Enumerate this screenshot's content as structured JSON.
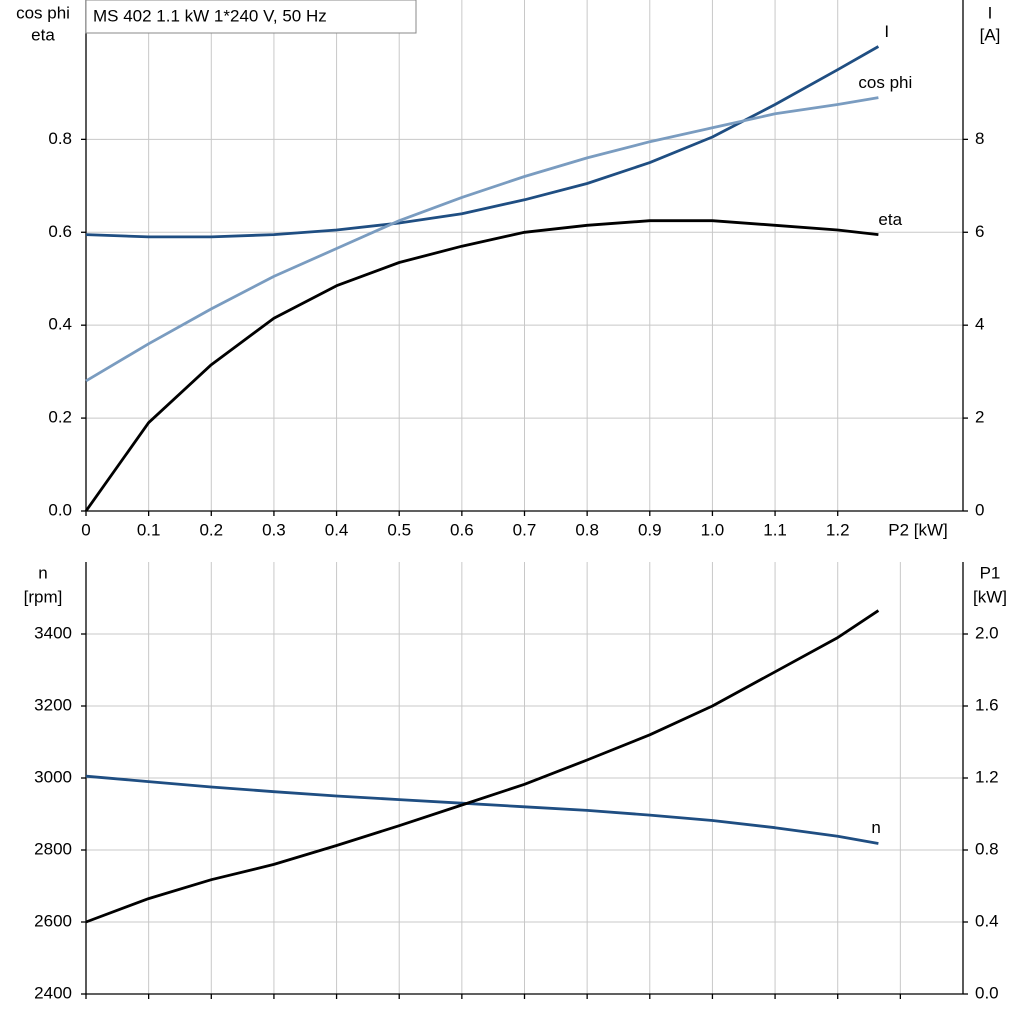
{
  "chart_data": [
    {
      "type": "line",
      "title": "MS 402   1.1 kW   1*240 V, 50 Hz",
      "x": [
        0,
        0.1,
        0.2,
        0.3,
        0.4,
        0.5,
        0.6,
        0.7,
        0.8,
        0.9,
        1.0,
        1.1,
        1.2,
        1.265
      ],
      "xlim": [
        0,
        1.4
      ],
      "xticks": [
        0,
        0.1,
        0.2,
        0.3,
        0.4,
        0.5,
        0.6,
        0.7,
        0.8,
        0.9,
        {
          "value": 1,
          "label": "1.0"
        },
        1.1,
        1.2
      ],
      "xlabel": "P2 [kW]",
      "ylim": [
        0,
        1.1
      ],
      "yticks": [
        {
          "value": 0,
          "label": "0.0"
        },
        0.2,
        0.4,
        0.6,
        0.8
      ],
      "ylabel": [
        "cos phi",
        "eta"
      ],
      "y2lim": [
        0,
        11
      ],
      "y2ticks": [
        0,
        2,
        4,
        6,
        8
      ],
      "y2label": [
        "I",
        "[A]"
      ],
      "grid": true,
      "series": [
        {
          "name": "I",
          "color": "#1f4e82",
          "axis": "y2",
          "values": [
            5.95,
            5.9,
            5.9,
            5.95,
            6.05,
            6.2,
            6.4,
            6.7,
            7.05,
            7.5,
            8.05,
            8.75,
            9.5,
            10.0
          ]
        },
        {
          "name": "cos phi",
          "color": "#7a9cc0",
          "values": [
            0.28,
            0.36,
            0.435,
            0.505,
            0.565,
            0.625,
            0.675,
            0.72,
            0.76,
            0.795,
            0.825,
            0.855,
            0.875,
            0.89
          ]
        },
        {
          "name": "eta",
          "color": "#000000",
          "values": [
            0,
            0.19,
            0.315,
            0.415,
            0.485,
            0.535,
            0.57,
            0.6,
            0.615,
            0.625,
            0.625,
            0.615,
            0.605,
            0.595
          ]
        }
      ]
    },
    {
      "type": "line",
      "x": [
        0,
        0.1,
        0.2,
        0.3,
        0.4,
        0.5,
        0.6,
        0.7,
        0.8,
        0.9,
        1.0,
        1.1,
        1.2,
        1.265
      ],
      "xlim": [
        0,
        1.4
      ],
      "xticks": [
        0,
        0.1,
        0.2,
        0.3,
        0.4,
        0.5,
        0.6,
        0.7,
        0.8,
        0.9,
        1.0,
        1.1,
        1.2,
        1.3
      ],
      "show_xtick_labels": false,
      "ylim": [
        2400,
        3600
      ],
      "yticks": [
        2400,
        2600,
        2800,
        3000,
        3200,
        3400
      ],
      "ylabel": [
        "n",
        "[rpm]"
      ],
      "y2lim": [
        0,
        2.4
      ],
      "y2ticks": [
        {
          "value": 0,
          "label": "0.0"
        },
        0.4,
        0.8,
        1.2,
        1.6,
        {
          "value": 2,
          "label": "2.0"
        }
      ],
      "y2label": [
        "P1",
        "[kW]"
      ],
      "grid": true,
      "series": [
        {
          "name": "n",
          "color": "#1f4e82",
          "values": [
            3005,
            2990,
            2975,
            2962,
            2950,
            2940,
            2930,
            2920,
            2910,
            2897,
            2882,
            2862,
            2838,
            2818
          ]
        },
        {
          "color": "#000000",
          "axis": "y2",
          "values": [
            0.4,
            0.53,
            0.635,
            0.72,
            0.825,
            0.935,
            1.05,
            1.165,
            1.3,
            1.44,
            1.6,
            1.79,
            1.98,
            2.13
          ]
        }
      ]
    }
  ]
}
